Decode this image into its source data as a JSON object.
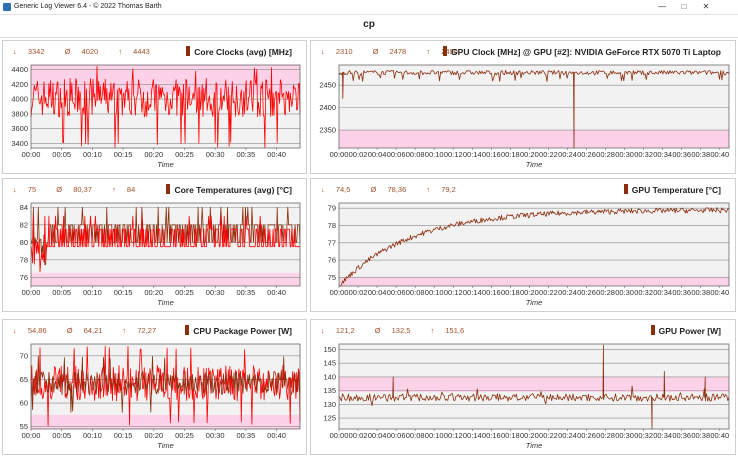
{
  "window": {
    "title": "Generic Log Viewer 6.4 - © 2022 Thomas Barth",
    "buttons": {
      "minimize": "—",
      "maximize": "□",
      "close": "✕"
    }
  },
  "page_title": "cp",
  "colors": {
    "line_red": "#ff0000",
    "line_brown": "#8b2e0e",
    "band": "#ffc7e4",
    "stats": "#a0522d"
  },
  "panels": [
    {
      "title": "Core Clocks (avg) [MHz]",
      "min": "3342",
      "avg": "4020",
      "max": "4443"
    },
    {
      "title": "GPU Clock [MHz] @ GPU [#2]: NVIDIA GeForce RTX 5070 Ti Laptop",
      "min": "2310",
      "avg": "2478",
      "max": "2490"
    },
    {
      "title": "Core Temperatures (avg) [°C]",
      "min": "75",
      "avg": "80,37",
      "max": "84"
    },
    {
      "title": "GPU Temperature [°C]",
      "min": "74,5",
      "avg": "78,36",
      "max": "79,2"
    },
    {
      "title": "CPU Package Power [W]",
      "min": "54,86",
      "avg": "64,21",
      "max": "72,27"
    },
    {
      "title": "GPU Power [W]",
      "min": "121,2",
      "avg": "132,5",
      "max": "151,6"
    }
  ],
  "chart_data": [
    {
      "type": "line",
      "title": "Core Clocks (avg) [MHz]",
      "xlabel": "Time",
      "ylabel": "",
      "x_ticks": [
        "00:00",
        "00:05",
        "00:10",
        "00:15",
        "00:20",
        "00:25",
        "00:30",
        "00:35",
        "00:40"
      ],
      "y_ticks": [
        "3400",
        "3600",
        "3800",
        "4000",
        "4200",
        "4400"
      ],
      "y_tick_values": [
        3400,
        3600,
        3800,
        4000,
        4200,
        4400
      ],
      "xlim": [
        0,
        41
      ],
      "ylim": [
        3340,
        4460
      ],
      "band": [
        4060,
        4460
      ],
      "series": [
        {
          "color": "#ff0000",
          "style": "noisy",
          "base": 4020,
          "spread": 260,
          "drop_min": 3342,
          "peak_max": 4443
        }
      ],
      "grid": true
    },
    {
      "type": "line",
      "title": "GPU Clock [MHz] @ GPU [#2]: NVIDIA GeForce RTX 5070 Ti Laptop",
      "xlabel": "Time",
      "ylabel": "",
      "x_ticks": [
        "00:00",
        "00:02",
        "00:04",
        "00:06",
        "00:08",
        "00:10",
        "00:12",
        "00:14",
        "00:16",
        "00:18",
        "00:20",
        "00:22",
        "00:24",
        "00:26",
        "00:28",
        "00:30",
        "00:32",
        "00:34",
        "00:36",
        "00:38",
        "00:40"
      ],
      "y_ticks": [
        "2350",
        "2400",
        "2450"
      ],
      "y_tick_values": [
        2350,
        2400,
        2450
      ],
      "xlim": [
        0,
        41
      ],
      "ylim": [
        2310,
        2495
      ],
      "band": [
        2310,
        2350
      ],
      "series": [
        {
          "color": "#8b2e0e",
          "style": "flat",
          "base": 2478,
          "spread": 10,
          "dips": [
            {
              "x": 0.4,
              "y": 2420
            },
            {
              "x": 24.7,
              "y": 2310
            }
          ]
        }
      ],
      "grid": true
    },
    {
      "type": "line",
      "title": "Core Temperatures (avg) [°C]",
      "xlabel": "Time",
      "ylabel": "",
      "x_ticks": [
        "00:00",
        "00:05",
        "00:10",
        "00:15",
        "00:20",
        "00:25",
        "00:30",
        "00:35",
        "00:40"
      ],
      "y_ticks": [
        "76",
        "78",
        "80",
        "82",
        "84"
      ],
      "y_tick_values": [
        76,
        78,
        80,
        82,
        84
      ],
      "xlim": [
        0,
        41
      ],
      "ylim": [
        75,
        84.5
      ],
      "band": [
        75,
        76.5
      ],
      "series": [
        {
          "color": "#8b2e0e",
          "style": "steps",
          "values_from": 80,
          "values_to": 82,
          "spikes_to": 84
        },
        {
          "color": "#ff0000",
          "style": "steps",
          "values_from": 79.5,
          "values_to": 81.5,
          "spikes_to": 83
        }
      ],
      "grid": true
    },
    {
      "type": "line",
      "title": "GPU Temperature [°C]",
      "xlabel": "Time",
      "ylabel": "",
      "x_ticks": [
        "00:00",
        "00:02",
        "00:04",
        "00:06",
        "00:08",
        "00:10",
        "00:12",
        "00:14",
        "00:16",
        "00:18",
        "00:20",
        "00:22",
        "00:24",
        "00:26",
        "00:28",
        "00:30",
        "00:32",
        "00:34",
        "00:36",
        "00:38",
        "00:40"
      ],
      "y_ticks": [
        "75",
        "76",
        "77",
        "78",
        "79"
      ],
      "y_tick_values": [
        75,
        76,
        77,
        78,
        79
      ],
      "xlim": [
        0,
        41
      ],
      "ylim": [
        74.5,
        79.3
      ],
      "band": [
        74.5,
        75
      ],
      "series": [
        {
          "color": "#8b2e0e",
          "style": "warmup",
          "start": 74.5,
          "plateau": 78.9,
          "spread": 0.15
        }
      ],
      "grid": true
    },
    {
      "type": "line",
      "title": "CPU Package Power [W]",
      "xlabel": "Time",
      "ylabel": "",
      "x_ticks": [
        "00:00",
        "00:05",
        "00:10",
        "00:15",
        "00:20",
        "00:25",
        "00:30",
        "00:35",
        "00:40"
      ],
      "y_ticks": [
        "55",
        "60",
        "65",
        "70"
      ],
      "y_tick_values": [
        55,
        60,
        65,
        70
      ],
      "xlim": [
        0,
        41
      ],
      "ylim": [
        54.5,
        72.5
      ],
      "band": [
        54.5,
        57.5
      ],
      "series": [
        {
          "color": "#ff0000",
          "style": "noisy",
          "base": 64.2,
          "spread": 3.8,
          "drop_min": 54.86,
          "peak_max": 72.27
        },
        {
          "color": "#8b2e0e",
          "style": "noisy",
          "base": 64.2,
          "spread": 2.5,
          "drop_min": 58,
          "peak_max": 70
        }
      ],
      "grid": true
    },
    {
      "type": "line",
      "title": "GPU Power [W]",
      "xlabel": "Time",
      "ylabel": "",
      "x_ticks": [
        "00:00",
        "00:02",
        "00:04",
        "00:06",
        "00:08",
        "00:10",
        "00:12",
        "00:14",
        "00:16",
        "00:18",
        "00:20",
        "00:22",
        "00:24",
        "00:26",
        "00:28",
        "00:30",
        "00:32",
        "00:34",
        "00:36",
        "00:38",
        "00:40"
      ],
      "y_ticks": [
        "125",
        "130",
        "135",
        "140",
        "145",
        "150"
      ],
      "y_tick_values": [
        125,
        130,
        135,
        140,
        145,
        150
      ],
      "xlim": [
        0,
        41
      ],
      "ylim": [
        121,
        152
      ],
      "band": [
        134.5,
        140
      ],
      "series": [
        {
          "color": "#8b2e0e",
          "style": "spiky",
          "base": 132.5,
          "spread": 1.4,
          "spikes": [
            {
              "x": 5.7,
              "y": 140
            },
            {
              "x": 27.8,
              "y": 151.6
            },
            {
              "x": 34.2,
              "y": 142
            },
            {
              "x": 38.5,
              "y": 140
            },
            {
              "x": 32.9,
              "y": 121.2
            }
          ]
        }
      ],
      "grid": true
    }
  ]
}
